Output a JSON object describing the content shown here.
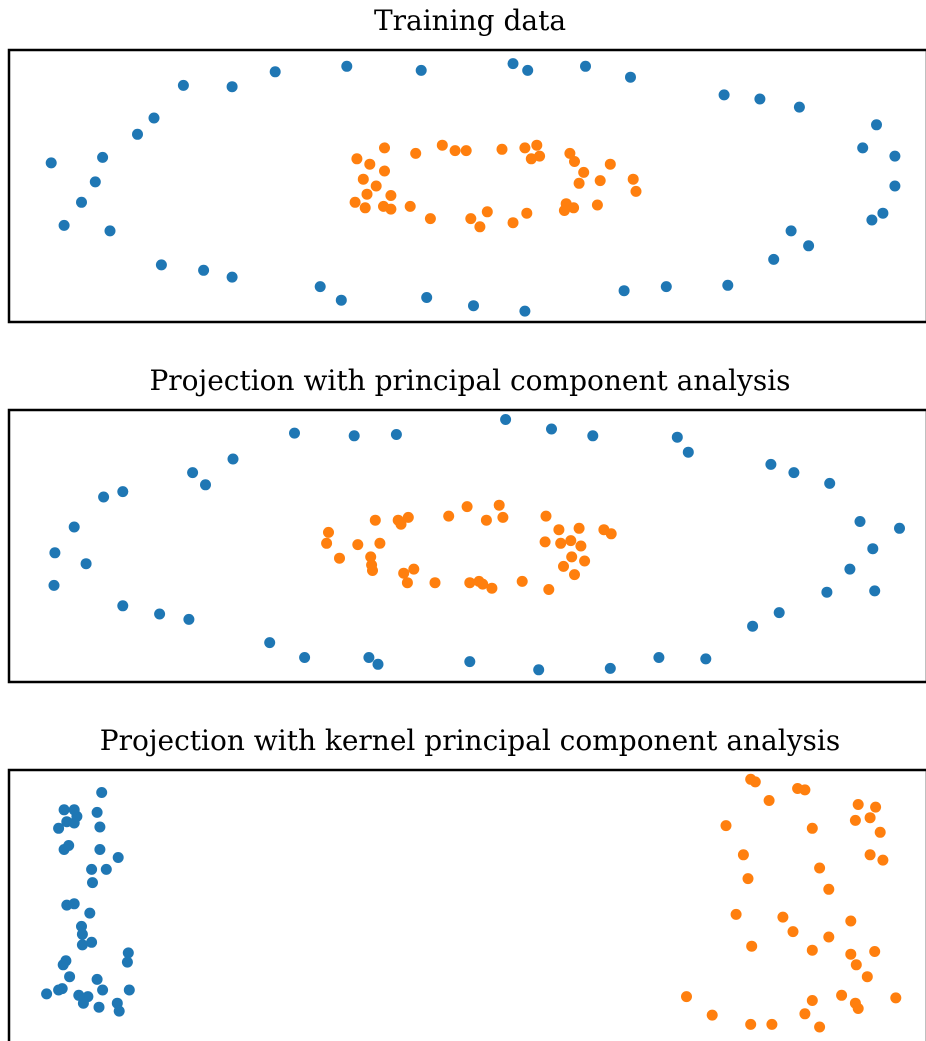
{
  "colors": {
    "outer": "#1f77b4",
    "inner": "#ff7f0e",
    "frame": "#000000",
    "background": "#ffffff"
  },
  "chart_data": [
    {
      "type": "scatter",
      "title": "Training data",
      "xlabel": "",
      "ylabel": "",
      "xlim": [
        0,
        100
      ],
      "ylim": [
        0,
        100
      ],
      "grid": false,
      "legend": "none",
      "axes": "none",
      "series": [
        {
          "color": "#1f77b4",
          "points": [
            [
              4.6,
              58.5
            ],
            [
              10.2,
              60.5
            ],
            [
              9.4,
              51.5
            ],
            [
              7.9,
              44.0
            ],
            [
              6.0,
              35.5
            ],
            [
              11.0,
              33.5
            ],
            [
              14.0,
              69.0
            ],
            [
              15.8,
              75.0
            ],
            [
              19.0,
              87.0
            ],
            [
              24.3,
              86.5
            ],
            [
              29.0,
              92.0
            ],
            [
              36.8,
              94.0
            ],
            [
              44.9,
              92.5
            ],
            [
              54.9,
              95.0
            ],
            [
              56.5,
              92.5
            ],
            [
              62.8,
              94.0
            ],
            [
              67.7,
              90.0
            ],
            [
              77.9,
              83.5
            ],
            [
              81.8,
              82.0
            ],
            [
              86.1,
              79.0
            ],
            [
              94.5,
              72.5
            ],
            [
              93.0,
              64.0
            ],
            [
              96.5,
              61.0
            ],
            [
              96.5,
              50.0
            ],
            [
              95.2,
              40.0
            ],
            [
              94.0,
              37.5
            ],
            [
              87.1,
              28.0
            ],
            [
              85.2,
              33.5
            ],
            [
              83.3,
              23.0
            ],
            [
              78.3,
              13.5
            ],
            [
              71.6,
              13.0
            ],
            [
              67.0,
              11.5
            ],
            [
              56.2,
              4.0
            ],
            [
              50.6,
              6.0
            ],
            [
              45.5,
              9.0
            ],
            [
              36.2,
              8.0
            ],
            [
              33.9,
              13.0
            ],
            [
              24.3,
              16.5
            ],
            [
              21.2,
              19.0
            ],
            [
              16.6,
              21.0
            ]
          ]
        },
        {
          "color": "#ff7f0e",
          "points": [
            [
              37.9,
              60.0
            ],
            [
              39.3,
              58.0
            ],
            [
              38.6,
              52.5
            ],
            [
              40.9,
              55.5
            ],
            [
              40.0,
              50.0
            ],
            [
              39.0,
              47.0
            ],
            [
              41.6,
              46.5
            ],
            [
              40.8,
              42.5
            ],
            [
              41.6,
              41.5
            ],
            [
              37.7,
              44.0
            ],
            [
              38.8,
              42.0
            ],
            [
              40.9,
              64.0
            ],
            [
              44.3,
              62.0
            ],
            [
              43.7,
              42.5
            ],
            [
              45.9,
              38.0
            ],
            [
              47.2,
              65.0
            ],
            [
              48.6,
              63.0
            ],
            [
              49.8,
              63.0
            ],
            [
              53.7,
              63.5
            ],
            [
              56.2,
              64.0
            ],
            [
              56.9,
              60.0
            ],
            [
              57.8,
              61.0
            ],
            [
              61.1,
              62.0
            ],
            [
              61.6,
              59.0
            ],
            [
              65.5,
              58.0
            ],
            [
              62.6,
              55.0
            ],
            [
              62.1,
              51.0
            ],
            [
              64.4,
              52.0
            ],
            [
              68.0,
              52.5
            ],
            [
              68.3,
              48.0
            ],
            [
              64.1,
              43.0
            ],
            [
              60.7,
              43.5
            ],
            [
              61.5,
              42.0
            ],
            [
              60.5,
              41.0
            ],
            [
              56.4,
              40.0
            ],
            [
              54.9,
              36.5
            ],
            [
              52.1,
              40.5
            ],
            [
              50.3,
              38.0
            ],
            [
              51.3,
              35.0
            ],
            [
              57.5,
              65.0
            ]
          ]
        }
      ]
    },
    {
      "type": "scatter",
      "title": "Projection with principal component analysis",
      "xlabel": "",
      "ylabel": "",
      "xlim": [
        0,
        100
      ],
      "ylim": [
        0,
        100
      ],
      "grid": false,
      "legend": "none",
      "axes": "none",
      "series": [
        {
          "color": "#1f77b4",
          "points": [
            [
              5.0,
              47.5
            ],
            [
              7.1,
              57.0
            ],
            [
              10.3,
              68.0
            ],
            [
              12.4,
              70.0
            ],
            [
              4.9,
              35.5
            ],
            [
              8.4,
              43.5
            ],
            [
              12.4,
              28.0
            ],
            [
              16.4,
              25.0
            ],
            [
              19.6,
              23.0
            ],
            [
              20.0,
              77.0
            ],
            [
              21.4,
              72.5
            ],
            [
              24.4,
              82.0
            ],
            [
              31.1,
              91.5
            ],
            [
              37.6,
              90.5
            ],
            [
              42.2,
              91.0
            ],
            [
              54.1,
              96.5
            ],
            [
              59.1,
              93.0
            ],
            [
              63.6,
              90.5
            ],
            [
              72.8,
              90.0
            ],
            [
              74.0,
              84.5
            ],
            [
              83.0,
              80.0
            ],
            [
              85.5,
              77.0
            ],
            [
              89.4,
              73.0
            ],
            [
              92.7,
              59.0
            ],
            [
              97.0,
              56.5
            ],
            [
              94.1,
              49.0
            ],
            [
              91.6,
              41.5
            ],
            [
              94.3,
              33.5
            ],
            [
              89.1,
              33.0
            ],
            [
              83.9,
              25.5
            ],
            [
              81.0,
              20.5
            ],
            [
              75.9,
              8.5
            ],
            [
              70.8,
              9.0
            ],
            [
              65.5,
              5.0
            ],
            [
              57.7,
              4.5
            ],
            [
              50.2,
              7.5
            ],
            [
              40.2,
              6.5
            ],
            [
              39.2,
              9.0
            ],
            [
              32.2,
              9.0
            ],
            [
              28.4,
              14.5
            ]
          ]
        },
        {
          "color": "#ff7f0e",
          "points": [
            [
              34.8,
              55.0
            ],
            [
              34.6,
              51.0
            ],
            [
              36.0,
              45.5
            ],
            [
              38.0,
              50.5
            ],
            [
              39.4,
              46.0
            ],
            [
              40.4,
              51.0
            ],
            [
              39.6,
              41.0
            ],
            [
              39.5,
              43.0
            ],
            [
              39.9,
              59.5
            ],
            [
              42.4,
              59.5
            ],
            [
              43.5,
              60.5
            ],
            [
              42.7,
              58.0
            ],
            [
              43.0,
              40.0
            ],
            [
              43.4,
              36.5
            ],
            [
              44.1,
              41.5
            ],
            [
              46.4,
              36.5
            ],
            [
              47.9,
              61.0
            ],
            [
              49.9,
              64.5
            ],
            [
              52.0,
              59.5
            ],
            [
              53.8,
              60.5
            ],
            [
              53.4,
              65.0
            ],
            [
              50.2,
              36.5
            ],
            [
              51.2,
              37.0
            ],
            [
              51.6,
              36.0
            ],
            [
              52.6,
              34.5
            ],
            [
              55.9,
              37.0
            ],
            [
              58.5,
              61.0
            ],
            [
              59.9,
              56.0
            ],
            [
              58.8,
              34.0
            ],
            [
              60.4,
              42.5
            ],
            [
              61.3,
              46.0
            ],
            [
              61.2,
              52.0
            ],
            [
              62.1,
              56.5
            ],
            [
              62.3,
              50.0
            ],
            [
              62.7,
              44.5
            ],
            [
              61.6,
              39.5
            ],
            [
              64.8,
              56.0
            ],
            [
              65.6,
              54.5
            ],
            [
              58.4,
              51.5
            ],
            [
              60.1,
              51.0
            ]
          ]
        }
      ]
    },
    {
      "type": "scatter",
      "title": "Projection with kernel principal component analysis",
      "xlabel": "",
      "ylabel": "",
      "xlim": [
        0,
        100
      ],
      "ylim": [
        0,
        100
      ],
      "grid": false,
      "legend": "none",
      "axes": "none",
      "series": [
        {
          "color": "#1f77b4",
          "points": [
            [
              5.4,
              78.0
            ],
            [
              6.3,
              80.5
            ],
            [
              7.1,
              80.0
            ],
            [
              7.4,
              82.5
            ],
            [
              6.0,
              85.0
            ],
            [
              7.1,
              85.0
            ],
            [
              9.6,
              84.0
            ],
            [
              10.1,
              91.5
            ],
            [
              9.9,
              78.5
            ],
            [
              6.0,
              70.0
            ],
            [
              6.5,
              71.5
            ],
            [
              9.9,
              70.0
            ],
            [
              11.9,
              67.0
            ],
            [
              9.0,
              62.5
            ],
            [
              10.6,
              62.5
            ],
            [
              9.1,
              57.5
            ],
            [
              6.3,
              49.0
            ],
            [
              7.1,
              49.5
            ],
            [
              8.8,
              46.0
            ],
            [
              7.9,
              41.0
            ],
            [
              8.0,
              38.0
            ],
            [
              8.0,
              34.0
            ],
            [
              9.0,
              35.0
            ],
            [
              6.2,
              28.0
            ],
            [
              5.9,
              26.5
            ],
            [
              13.0,
              31.0
            ],
            [
              12.9,
              27.5
            ],
            [
              6.6,
              22.0
            ],
            [
              5.8,
              17.5
            ],
            [
              5.4,
              17.0
            ],
            [
              9.6,
              21.0
            ],
            [
              10.2,
              17.0
            ],
            [
              8.6,
              14.5
            ],
            [
              8.1,
              12.0
            ],
            [
              9.8,
              10.5
            ],
            [
              11.8,
              12.0
            ],
            [
              12.0,
              9.0
            ],
            [
              13.1,
              17.0
            ],
            [
              7.6,
              15.0
            ],
            [
              4.1,
              15.5
            ]
          ]
        },
        {
          "color": "#ff7f0e",
          "points": [
            [
              80.8,
              96.5
            ],
            [
              81.3,
              95.5
            ],
            [
              82.8,
              88.5
            ],
            [
              85.9,
              93.0
            ],
            [
              86.7,
              92.5
            ],
            [
              92.5,
              87.0
            ],
            [
              94.4,
              86.0
            ],
            [
              93.8,
              82.0
            ],
            [
              92.2,
              81.0
            ],
            [
              94.9,
              76.5
            ],
            [
              78.1,
              79.0
            ],
            [
              87.5,
              78.0
            ],
            [
              80.0,
              68.0
            ],
            [
              93.8,
              68.0
            ],
            [
              95.2,
              66.0
            ],
            [
              88.3,
              63.0
            ],
            [
              80.5,
              59.0
            ],
            [
              89.3,
              55.0
            ],
            [
              79.2,
              45.5
            ],
            [
              84.3,
              44.5
            ],
            [
              91.7,
              43.0
            ],
            [
              85.4,
              39.0
            ],
            [
              89.3,
              37.0
            ],
            [
              80.9,
              33.5
            ],
            [
              87.5,
              32.0
            ],
            [
              91.7,
              30.5
            ],
            [
              94.3,
              31.5
            ],
            [
              92.3,
              26.5
            ],
            [
              93.5,
              22.0
            ],
            [
              92.5,
              10.0
            ],
            [
              90.7,
              15.0
            ],
            [
              92.2,
              12.0
            ],
            [
              96.6,
              14.0
            ],
            [
              87.5,
              13.0
            ],
            [
              73.8,
              14.5
            ],
            [
              76.6,
              7.5
            ],
            [
              80.8,
              4.0
            ],
            [
              83.1,
              4.0
            ],
            [
              86.7,
              8.0
            ],
            [
              88.3,
              3.0
            ]
          ]
        }
      ]
    }
  ]
}
